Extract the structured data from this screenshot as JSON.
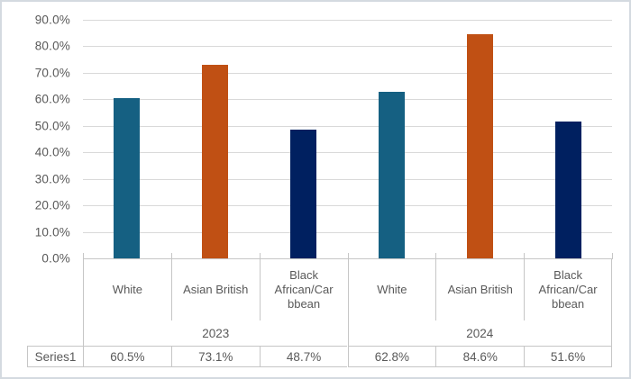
{
  "chart_data": {
    "type": "bar",
    "title": "",
    "series": [
      {
        "name": "Series1",
        "values": [
          60.5,
          73.1,
          48.7,
          62.8,
          84.6,
          51.6
        ]
      }
    ],
    "value_labels": [
      "60.5%",
      "73.1%",
      "48.7%",
      "62.8%",
      "84.6%",
      "51.6%"
    ],
    "groups": [
      {
        "label": "2023",
        "categories": [
          "White",
          "Asian British",
          "Black\nAfrican/Car\nbbean"
        ]
      },
      {
        "label": "2024",
        "categories": [
          "White",
          "Asian British",
          "Black\nAfrican/Car\nbbean"
        ]
      }
    ],
    "ylim": [
      0,
      90
    ],
    "yticks": [
      {
        "value": 0,
        "label": "0.0%"
      },
      {
        "value": 10,
        "label": "10.0%"
      },
      {
        "value": 20,
        "label": "20.0%"
      },
      {
        "value": 30,
        "label": "30.0%"
      },
      {
        "value": 40,
        "label": "40.0%"
      },
      {
        "value": 50,
        "label": "50.0%"
      },
      {
        "value": 60,
        "label": "60.0%"
      },
      {
        "value": 70,
        "label": "70.0%"
      },
      {
        "value": 80,
        "label": "80.0%"
      },
      {
        "value": 90,
        "label": "90.0%"
      }
    ],
    "category_colors": [
      "#156082",
      "#C05014",
      "#002060"
    ],
    "grid": true,
    "legend_position": "none"
  },
  "colors": {
    "axis_text": "#595959",
    "gridline": "#D9D9D9",
    "table_border": "#C6C6C6",
    "background": "#FFFFFF",
    "frame_border": "#D4DAE0"
  }
}
